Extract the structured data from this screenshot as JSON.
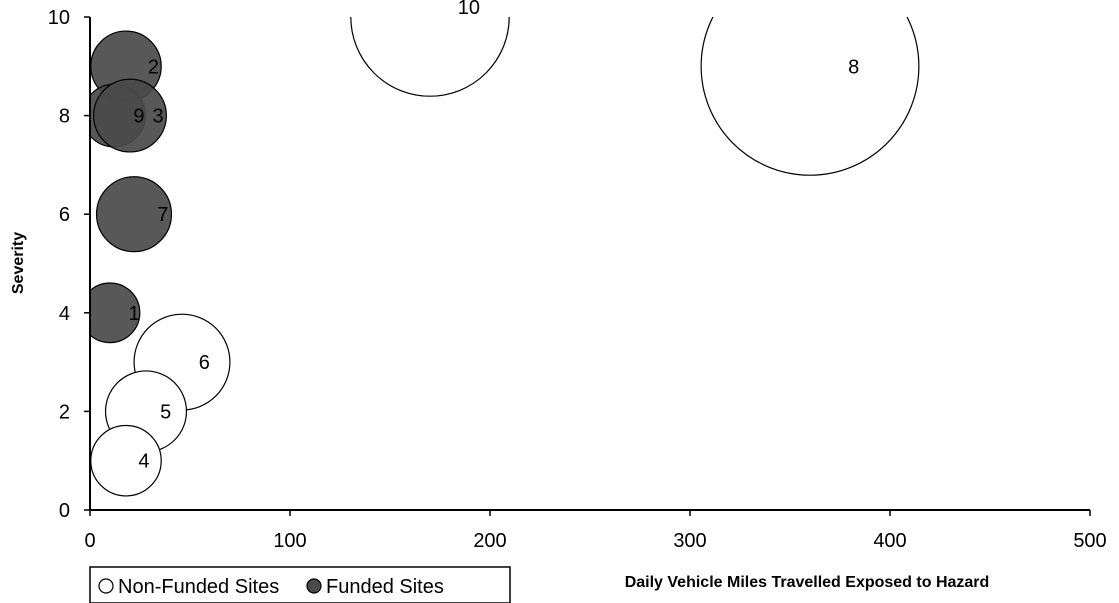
{
  "chart_data": {
    "type": "bubble",
    "xlabel": "Daily Vehicle Miles Travelled Exposed to Hazard",
    "ylabel": "Severity",
    "xlim": [
      0,
      500
    ],
    "ylim": [
      0,
      10
    ],
    "x_ticks": [
      "0",
      "100",
      "200",
      "300",
      "400",
      "500"
    ],
    "y_ticks": [
      "0",
      "2",
      "4",
      "6",
      "8",
      "10"
    ],
    "grid": false,
    "legend_position": "bottom-left",
    "series": [
      {
        "name": "Non-Funded Sites",
        "color": "#ffffff",
        "points": [
          {
            "label": "10",
            "x": 170,
            "y": 10
          },
          {
            "label": "8",
            "x": 360,
            "y": 9
          },
          {
            "label": "6",
            "x": 46,
            "y": 3
          },
          {
            "label": "5",
            "x": 28,
            "y": 2
          },
          {
            "label": "4",
            "x": 18,
            "y": 1
          }
        ]
      },
      {
        "name": "Funded Sites",
        "color": "#4a4a4a",
        "points": [
          {
            "label": "2",
            "x": 18,
            "y": 9
          },
          {
            "label": "9",
            "x": 12,
            "y": 8
          },
          {
            "label": "3",
            "x": 20,
            "y": 8
          },
          {
            "label": "7",
            "x": 22,
            "y": 6
          },
          {
            "label": "1",
            "x": 10,
            "y": 4
          }
        ]
      }
    ]
  }
}
